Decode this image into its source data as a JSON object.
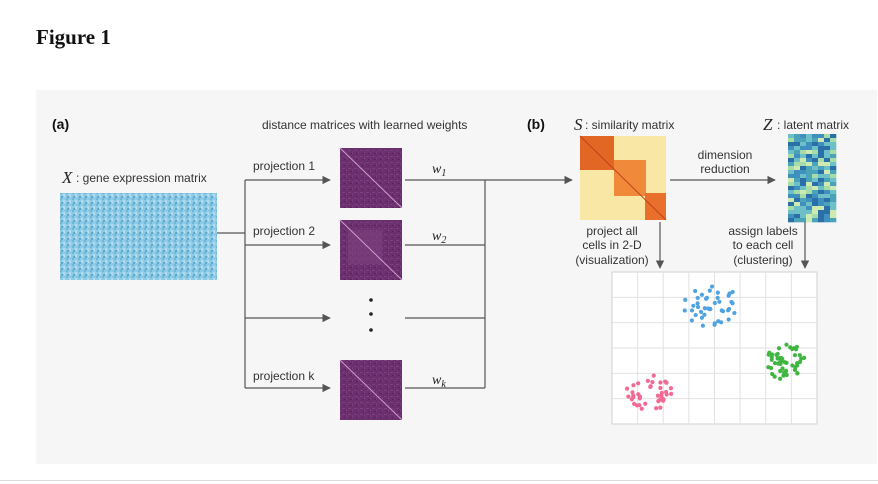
{
  "figure_title": "Figure 1",
  "panel_a": {
    "label": "(a)",
    "header": "distance matrices with learned weights",
    "x_symbol": "X",
    "x_caption": ": gene expression matrix",
    "projections": [
      {
        "label": "projection 1",
        "weight": "w",
        "sub": "1"
      },
      {
        "label": "projection 2",
        "weight": "w",
        "sub": "2"
      },
      {
        "label": "projection k",
        "weight": "w",
        "sub": "k"
      }
    ]
  },
  "panel_b": {
    "label": "(b)",
    "s_symbol": "S",
    "s_caption": ": similarity matrix",
    "z_symbol": "Z",
    "z_caption": ": latent matrix",
    "dimension_reduction": [
      "dimension",
      "reduction"
    ],
    "project_note": [
      "project all",
      "cells in 2-D",
      "(visualization)"
    ],
    "assign_note": [
      "assign labels",
      "to each cell",
      "(clustering)"
    ]
  },
  "colors": {
    "expression_matrix": "#8ecbe6",
    "distance_matrix": "#6b2f6e",
    "similarity_high": "#e8702a",
    "similarity_low": "#f9e7a6",
    "cluster_blue": "#4ea3e0",
    "cluster_green": "#3fb63f",
    "cluster_pink": "#f06a94"
  }
}
